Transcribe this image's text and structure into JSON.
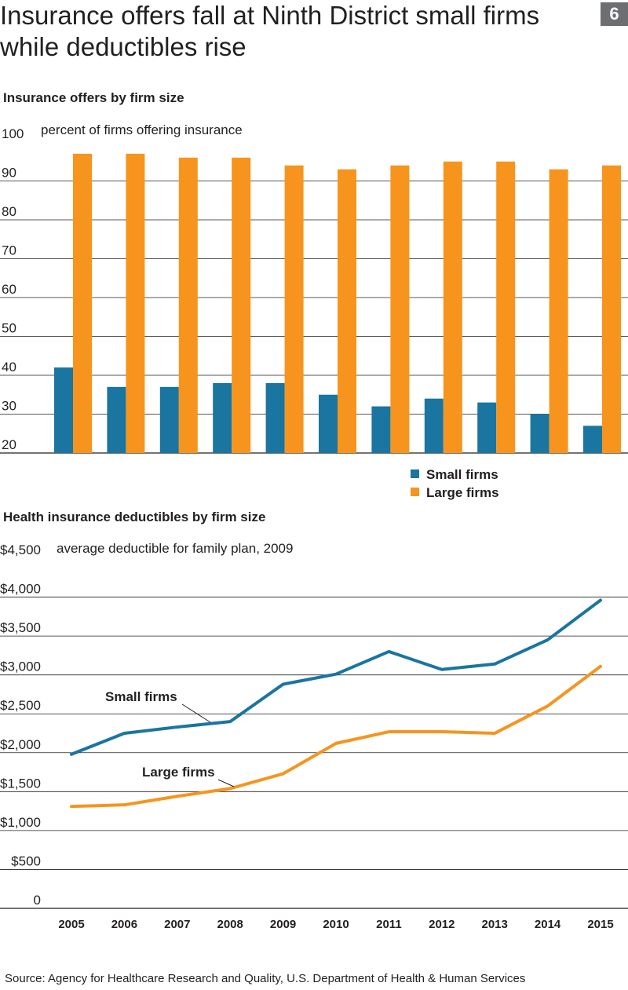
{
  "header": {
    "title": "Insurance offers fall at Ninth District small firms while deductibles rise",
    "badge": "6"
  },
  "colors": {
    "small": "#1a75a0",
    "large": "#f7941d",
    "grid": "#231f20"
  },
  "chart_data": [
    {
      "type": "bar",
      "title": "Insurance offers by firm size",
      "ylabel": "percent of firms offering insurance",
      "categories": [
        "2005",
        "2006",
        "2007",
        "2008",
        "2009",
        "2010",
        "2011",
        "2012",
        "2013",
        "2014",
        "2015"
      ],
      "ylim": [
        20,
        100
      ],
      "yticks": [
        "100",
        "90",
        "80",
        "70",
        "60",
        "50",
        "40",
        "30",
        "20"
      ],
      "legend": {
        "position": "bottom-right",
        "small": "Small firms",
        "large": "Large firms"
      },
      "series": [
        {
          "name": "Small firms",
          "values": [
            42,
            37,
            37,
            38,
            38,
            35,
            32,
            34,
            33,
            30,
            27
          ]
        },
        {
          "name": "Large firms",
          "values": [
            97,
            97,
            96,
            96,
            94,
            93,
            94,
            95,
            95,
            93,
            94
          ]
        }
      ],
      "grid": true
    },
    {
      "type": "line",
      "title": "Health insurance deductibles by firm size",
      "ylabel": "average deductible for family plan, 2009",
      "x": [
        "2005",
        "2006",
        "2007",
        "2008",
        "2009",
        "2010",
        "2011",
        "2012",
        "2013",
        "2014",
        "2015"
      ],
      "ylim": [
        0,
        4500
      ],
      "yticks": [
        "$4,500",
        "$4,000",
        "$3,500",
        "$3,000",
        "$2,500",
        "$2,000",
        "$1,500",
        "$1,000",
        "$500",
        "0"
      ],
      "series": [
        {
          "name": "Small firms",
          "values": [
            1980,
            2250,
            2330,
            2400,
            2880,
            3010,
            3300,
            3070,
            3140,
            3450,
            3960
          ]
        },
        {
          "name": "Large firms",
          "values": [
            1310,
            1330,
            1440,
            1540,
            1730,
            2120,
            2270,
            2270,
            2250,
            2600,
            3110
          ]
        }
      ],
      "grid": true
    }
  ],
  "footer": {
    "source": "Source: Agency for Healthcare Research and Quality, U.S. Department of Health & Human Services"
  }
}
